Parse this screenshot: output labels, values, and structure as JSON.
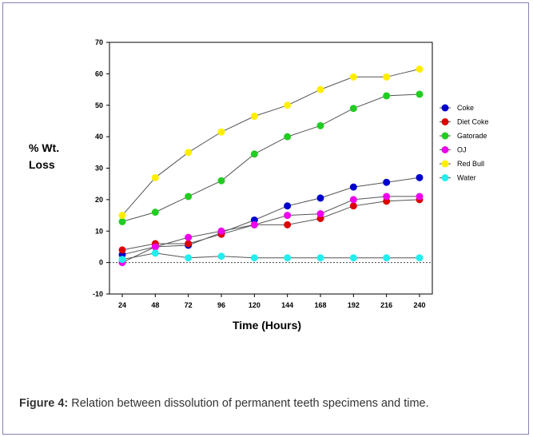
{
  "caption": {
    "label": "Figure 4:",
    "text": "Relation between dissolution of permanent teeth specimens and time."
  },
  "chart_data": {
    "type": "line",
    "title": "",
    "xlabel": "Time (Hours)",
    "ylabel_lines": [
      "% Wt.",
      "Loss"
    ],
    "x": [
      24,
      48,
      72,
      96,
      120,
      144,
      168,
      192,
      216,
      240
    ],
    "ylim": [
      -10,
      70
    ],
    "yticks": [
      -10,
      0,
      10,
      20,
      30,
      40,
      50,
      60,
      70
    ],
    "zero_line": true,
    "grid": false,
    "legend_position": "right",
    "series": [
      {
        "name": "Coke",
        "color": "#0000cc",
        "values": [
          2.5,
          5,
          5.5,
          9.5,
          13.5,
          18,
          20.5,
          24,
          25.5,
          27
        ]
      },
      {
        "name": "Diet Coke",
        "color": "#dd0000",
        "values": [
          4,
          6,
          6,
          9,
          12,
          12,
          14,
          18,
          19.5,
          20
        ]
      },
      {
        "name": "Gatorade",
        "color": "#22cc22",
        "values": [
          13,
          16,
          21,
          26,
          34.5,
          40,
          43.5,
          49,
          53,
          53.5
        ]
      },
      {
        "name": "OJ",
        "color": "#ee00ee",
        "values": [
          0,
          5,
          8,
          10,
          12,
          15,
          15.5,
          20,
          21,
          21
        ]
      },
      {
        "name": "Red Bull",
        "color": "#ffee00",
        "values": [
          15,
          27,
          35,
          41.5,
          46.5,
          50,
          55,
          59,
          59,
          61.5
        ]
      },
      {
        "name": "Water",
        "color": "#22eeee",
        "values": [
          1,
          3,
          1.5,
          2,
          1.5,
          1.5,
          1.5,
          1.5,
          1.5,
          1.5
        ]
      }
    ]
  }
}
